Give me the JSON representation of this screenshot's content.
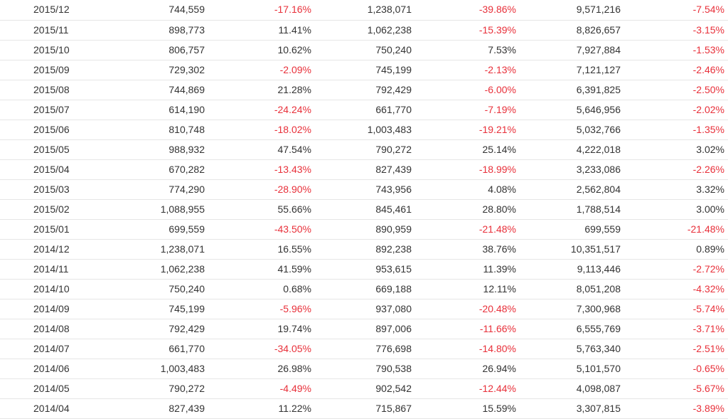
{
  "table": {
    "rows": [
      [
        "2015/12",
        "744,559",
        "-17.16%",
        "1,238,071",
        "-39.86%",
        "9,571,216",
        "-7.54%"
      ],
      [
        "2015/11",
        "898,773",
        "11.41%",
        "1,062,238",
        "-15.39%",
        "8,826,657",
        "-3.15%"
      ],
      [
        "2015/10",
        "806,757",
        "10.62%",
        "750,240",
        "7.53%",
        "7,927,884",
        "-1.53%"
      ],
      [
        "2015/09",
        "729,302",
        "-2.09%",
        "745,199",
        "-2.13%",
        "7,121,127",
        "-2.46%"
      ],
      [
        "2015/08",
        "744,869",
        "21.28%",
        "792,429",
        "-6.00%",
        "6,391,825",
        "-2.50%"
      ],
      [
        "2015/07",
        "614,190",
        "-24.24%",
        "661,770",
        "-7.19%",
        "5,646,956",
        "-2.02%"
      ],
      [
        "2015/06",
        "810,748",
        "-18.02%",
        "1,003,483",
        "-19.21%",
        "5,032,766",
        "-1.35%"
      ],
      [
        "2015/05",
        "988,932",
        "47.54%",
        "790,272",
        "25.14%",
        "4,222,018",
        "3.02%"
      ],
      [
        "2015/04",
        "670,282",
        "-13.43%",
        "827,439",
        "-18.99%",
        "3,233,086",
        "-2.26%"
      ],
      [
        "2015/03",
        "774,290",
        "-28.90%",
        "743,956",
        "4.08%",
        "2,562,804",
        "3.32%"
      ],
      [
        "2015/02",
        "1,088,955",
        "55.66%",
        "845,461",
        "28.80%",
        "1,788,514",
        "3.00%"
      ],
      [
        "2015/01",
        "699,559",
        "-43.50%",
        "890,959",
        "-21.48%",
        "699,559",
        "-21.48%"
      ],
      [
        "2014/12",
        "1,238,071",
        "16.55%",
        "892,238",
        "38.76%",
        "10,351,517",
        "0.89%"
      ],
      [
        "2014/11",
        "1,062,238",
        "41.59%",
        "953,615",
        "11.39%",
        "9,113,446",
        "-2.72%"
      ],
      [
        "2014/10",
        "750,240",
        "0.68%",
        "669,188",
        "12.11%",
        "8,051,208",
        "-4.32%"
      ],
      [
        "2014/09",
        "745,199",
        "-5.96%",
        "937,080",
        "-20.48%",
        "7,300,968",
        "-5.74%"
      ],
      [
        "2014/08",
        "792,429",
        "19.74%",
        "897,006",
        "-11.66%",
        "6,555,769",
        "-3.71%"
      ],
      [
        "2014/07",
        "661,770",
        "-34.05%",
        "776,698",
        "-14.80%",
        "5,763,340",
        "-2.51%"
      ],
      [
        "2014/06",
        "1,003,483",
        "26.98%",
        "790,538",
        "26.94%",
        "5,101,570",
        "-0.65%"
      ],
      [
        "2014/05",
        "790,272",
        "-4.49%",
        "902,542",
        "-12.44%",
        "4,098,087",
        "-5.67%"
      ],
      [
        "2014/04",
        "827,439",
        "11.22%",
        "715,867",
        "15.59%",
        "3,307,815",
        "-3.89%"
      ]
    ]
  },
  "colors": {
    "negative": "#e8303a",
    "text": "#333333",
    "divider": "#e6e6e6"
  }
}
